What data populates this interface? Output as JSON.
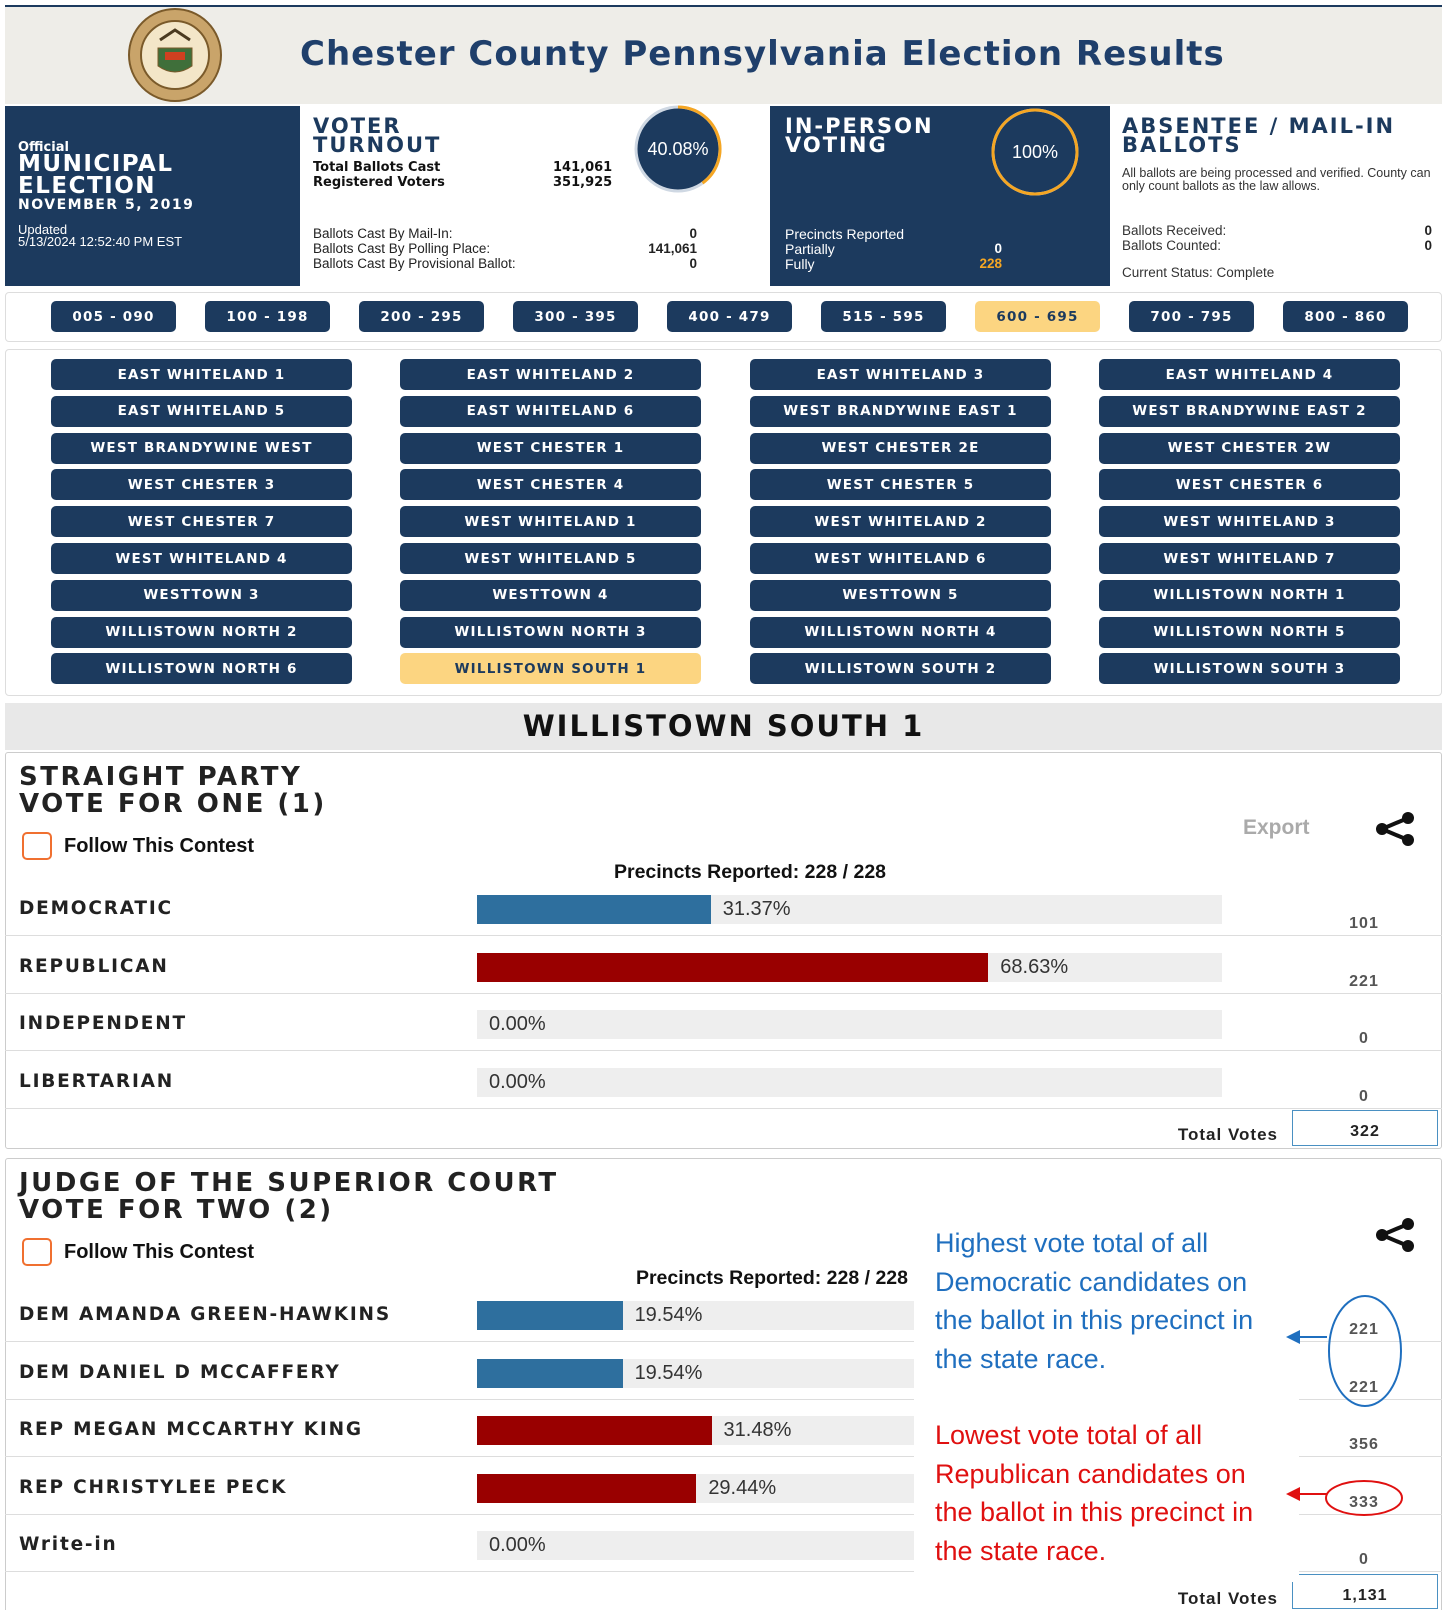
{
  "header": {
    "title": "Chester County Pennsylvania Election Results"
  },
  "election": {
    "label": "Official",
    "name": "MUNICIPAL ELECTION",
    "date": "NOVEMBER 5, 2019",
    "updated_label": "Updated",
    "updated": "5/13/2024 12:52:40 PM EST"
  },
  "voter_turnout": {
    "title": "VOTER TURNOUT",
    "percent": 40.08,
    "percent_label": "40.08%",
    "stats": [
      {
        "label": "Total Ballots Cast",
        "value": "141,061"
      },
      {
        "label": "Registered Voters",
        "value": "351,925"
      }
    ],
    "details": [
      {
        "label": "Ballots Cast By Mail-In:",
        "value": "0"
      },
      {
        "label": "Ballots Cast By Polling Place:",
        "value": "141,061"
      },
      {
        "label": "Ballots Cast By Provisional Ballot:",
        "value": "0"
      }
    ]
  },
  "in_person": {
    "title": "IN-PERSON VOTING",
    "percent": 100,
    "percent_label": "100%",
    "reported_label": "Precincts Reported",
    "details": [
      {
        "label": "Partially",
        "value": "0"
      },
      {
        "label": "Fully",
        "value": "228"
      }
    ]
  },
  "absentee": {
    "title": "ABSENTEE / MAIL-IN BALLOTS",
    "note": "All ballots are being processed and verified. County can only count ballots as the law allows.",
    "details": [
      {
        "label": "Ballots Received:",
        "value": "0"
      },
      {
        "label": "Ballots Counted:",
        "value": "0"
      }
    ],
    "status": "Current Status: Complete"
  },
  "ranges": [
    "005 - 090",
    "100 - 198",
    "200 - 295",
    "300 - 395",
    "400 - 479",
    "515 - 595",
    "600 - 695",
    "700 - 795",
    "800 - 860"
  ],
  "active_range": 6,
  "precincts": [
    "EAST WHITELAND 1",
    "EAST WHITELAND 2",
    "EAST WHITELAND 3",
    "EAST WHITELAND 4",
    "EAST WHITELAND 5",
    "EAST WHITELAND 6",
    "WEST BRANDYWINE EAST 1",
    "WEST BRANDYWINE EAST 2",
    "WEST BRANDYWINE WEST",
    "WEST CHESTER 1",
    "WEST CHESTER 2E",
    "WEST CHESTER 2W",
    "WEST CHESTER 3",
    "WEST CHESTER 4",
    "WEST CHESTER 5",
    "WEST CHESTER 6",
    "WEST CHESTER 7",
    "WEST WHITELAND 1",
    "WEST WHITELAND 2",
    "WEST WHITELAND 3",
    "WEST WHITELAND 4",
    "WEST WHITELAND 5",
    "WEST WHITELAND 6",
    "WEST WHITELAND 7",
    "WESTTOWN 3",
    "WESTTOWN 4",
    "WESTTOWN 5",
    "WILLISTOWN NORTH 1",
    "WILLISTOWN NORTH 2",
    "WILLISTOWN NORTH 3",
    "WILLISTOWN NORTH 4",
    "WILLISTOWN NORTH 5",
    "WILLISTOWN NORTH 6",
    "WILLISTOWN SOUTH 1",
    "WILLISTOWN SOUTH 2",
    "WILLISTOWN SOUTH 3"
  ],
  "selected_precinct": "WILLISTOWN SOUTH 1",
  "contests": [
    {
      "title": "STRAIGHT PARTY",
      "vote_for": "VOTE FOR ONE (1)",
      "follow": "Follow This Contest",
      "export": "Export",
      "reported": "Precincts Reported: 228 / 228",
      "rows": [
        {
          "name": "DEMOCRATIC",
          "percent": 31.37,
          "percent_label": "31.37%",
          "color": "#2e6f9e",
          "votes": "101"
        },
        {
          "name": "REPUBLICAN",
          "percent": 68.63,
          "percent_label": "68.63%",
          "color": "#990000",
          "votes": "221"
        },
        {
          "name": "INDEPENDENT",
          "percent": 0,
          "percent_label": "0.00%",
          "color": "#2e6f9e",
          "votes": "0"
        },
        {
          "name": "LIBERTARIAN",
          "percent": 0,
          "percent_label": "0.00%",
          "color": "#2e6f9e",
          "votes": "0"
        }
      ],
      "total_label": "Total Votes",
      "total": "322"
    },
    {
      "title": "JUDGE OF THE SUPERIOR COURT",
      "vote_for": "VOTE FOR TWO (2)",
      "follow": "Follow This Contest",
      "reported": "Precincts Reported: 228 / 228",
      "rows": [
        {
          "name": "DEM AMANDA GREEN-HAWKINS",
          "percent": 19.54,
          "percent_label": "19.54%",
          "color": "#2e6f9e",
          "votes": "221"
        },
        {
          "name": "DEM DANIEL D MCCAFFERY",
          "percent": 19.54,
          "percent_label": "19.54%",
          "color": "#2e6f9e",
          "votes": "221"
        },
        {
          "name": "REP MEGAN MCCARTHY KING",
          "percent": 31.48,
          "percent_label": "31.48%",
          "color": "#990000",
          "votes": "356"
        },
        {
          "name": "REP CHRISTYLEE PECK",
          "percent": 29.44,
          "percent_label": "29.44%",
          "color": "#990000",
          "votes": "333"
        },
        {
          "name": "Write-in",
          "percent": 0,
          "percent_label": "0.00%",
          "color": "#2e6f9e",
          "votes": "0"
        }
      ],
      "total_label": "Total Votes",
      "total": "1,131"
    }
  ],
  "annotations": [
    {
      "lines": [
        "Highest vote total of all",
        "Democratic candidates on",
        "the ballot in this precinct in",
        "the state race."
      ],
      "color": "#1f6fbf"
    },
    {
      "lines": [
        "Lowest vote total of all",
        "Republican candidates on",
        "the ballot in this precinct in",
        "the state race."
      ],
      "color": "#e01010"
    }
  ]
}
